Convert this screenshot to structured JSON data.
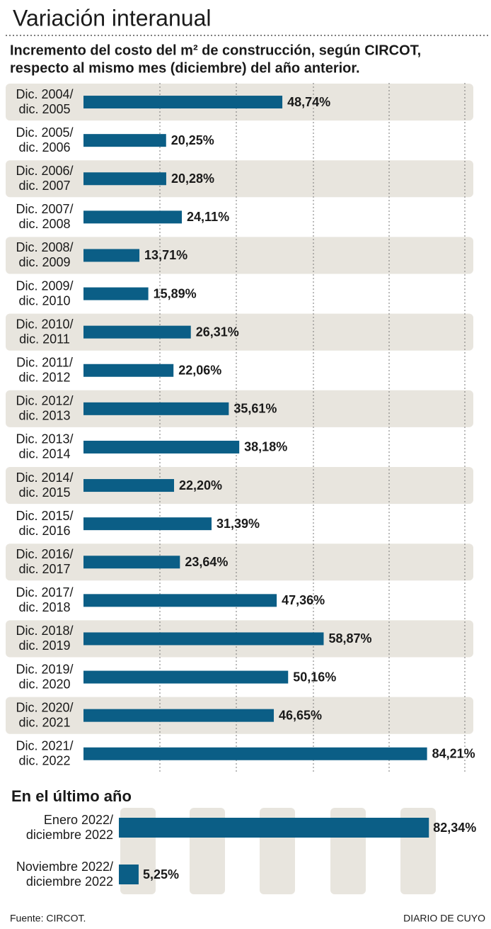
{
  "header": {
    "title": "Variación interanual",
    "subtitle": [
      "Incremento del costo del m² de construcción, según CIRCOT,",
      "respecto al mismo mes (diciembre) del año anterior."
    ]
  },
  "chart_data": [
    {
      "type": "bar",
      "orientation": "horizontal",
      "color": "#0b5e86",
      "xlim": [
        0,
        90
      ],
      "categories": [
        [
          "Dic. 2004/",
          "dic. 2005"
        ],
        [
          "Dic. 2005/",
          "dic. 2006"
        ],
        [
          "Dic. 2006/",
          "dic. 2007"
        ],
        [
          "Dic. 2007/",
          "dic. 2008"
        ],
        [
          "Dic. 2008/",
          "dic. 2009"
        ],
        [
          "Dic. 2009/",
          "dic. 2010"
        ],
        [
          "Dic. 2010/",
          "dic. 2011"
        ],
        [
          "Dic. 2011/",
          "dic. 2012"
        ],
        [
          "Dic. 2012/",
          "dic. 2013"
        ],
        [
          "Dic. 2013/",
          "dic. 2014"
        ],
        [
          "Dic. 2014/",
          "dic. 2015"
        ],
        [
          "Dic. 2015/",
          "dic. 2016"
        ],
        [
          "Dic. 2016/",
          "dic. 2017"
        ],
        [
          "Dic. 2017/",
          "dic. 2018"
        ],
        [
          "Dic. 2018/",
          "dic. 2019"
        ],
        [
          "Dic. 2019/",
          "dic. 2020"
        ],
        [
          "Dic. 2020/",
          "dic. 2021"
        ],
        [
          "Dic. 2021/",
          "dic. 2022"
        ]
      ],
      "values": [
        48.74,
        20.25,
        20.28,
        24.11,
        13.71,
        15.89,
        26.31,
        22.06,
        35.61,
        38.18,
        22.2,
        31.39,
        23.64,
        47.36,
        58.87,
        50.16,
        46.65,
        84.21
      ],
      "value_labels": [
        "48,74%",
        "20,25%",
        "20,28%",
        "24,11%",
        "13,71%",
        "15,89%",
        "26,31%",
        "22,06%",
        "35,61%",
        "38,18%",
        "22,20%",
        "31,39%",
        "23,64%",
        "47,36%",
        "58,87%",
        "50,16%",
        "46,65%",
        "84,21%"
      ]
    },
    {
      "type": "bar",
      "orientation": "horizontal",
      "title": "En el último año",
      "color": "#0b5e86",
      "xlim": [
        0,
        90
      ],
      "categories": [
        [
          "Enero 2022/",
          "diciembre 2022"
        ],
        [
          "Noviembre 2022/",
          "diciembre 2022"
        ]
      ],
      "values": [
        82.34,
        5.25
      ],
      "value_labels": [
        "82,34%",
        "5,25%"
      ]
    }
  ],
  "footer": {
    "source": "Fuente: CIRCOT.",
    "credit": "DIARIO DE CUYO"
  }
}
